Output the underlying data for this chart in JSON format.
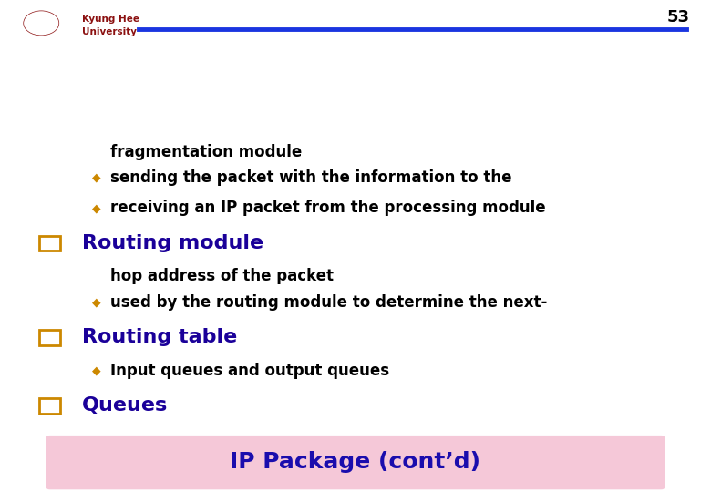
{
  "title": "IP Package (cont’d)",
  "title_bg_color": "#f5c8d8",
  "title_text_color": "#1a0dad",
  "bg_color": "#ffffff",
  "heading_color": "#1a0099",
  "heading_sq_color": "#cc8800",
  "bullet_color": "#cc8800",
  "body_color": "#000000",
  "footer_line_color": "#1a35e0",
  "page_number": "53",
  "university_name": "Kyung Hee\nUniversity",
  "university_color": "#8b1010",
  "sections": [
    {
      "heading": "Queues",
      "bullets": [
        [
          "Input queues and output queues"
        ]
      ]
    },
    {
      "heading": "Routing table",
      "bullets": [
        [
          "used by the routing module to determine the next-",
          "hop address of the packet"
        ]
      ]
    },
    {
      "heading": "Routing module",
      "bullets": [
        [
          "receiving an IP packet from the processing module"
        ],
        [
          "sending the packet with the information to the",
          "fragmentation module"
        ]
      ]
    }
  ]
}
